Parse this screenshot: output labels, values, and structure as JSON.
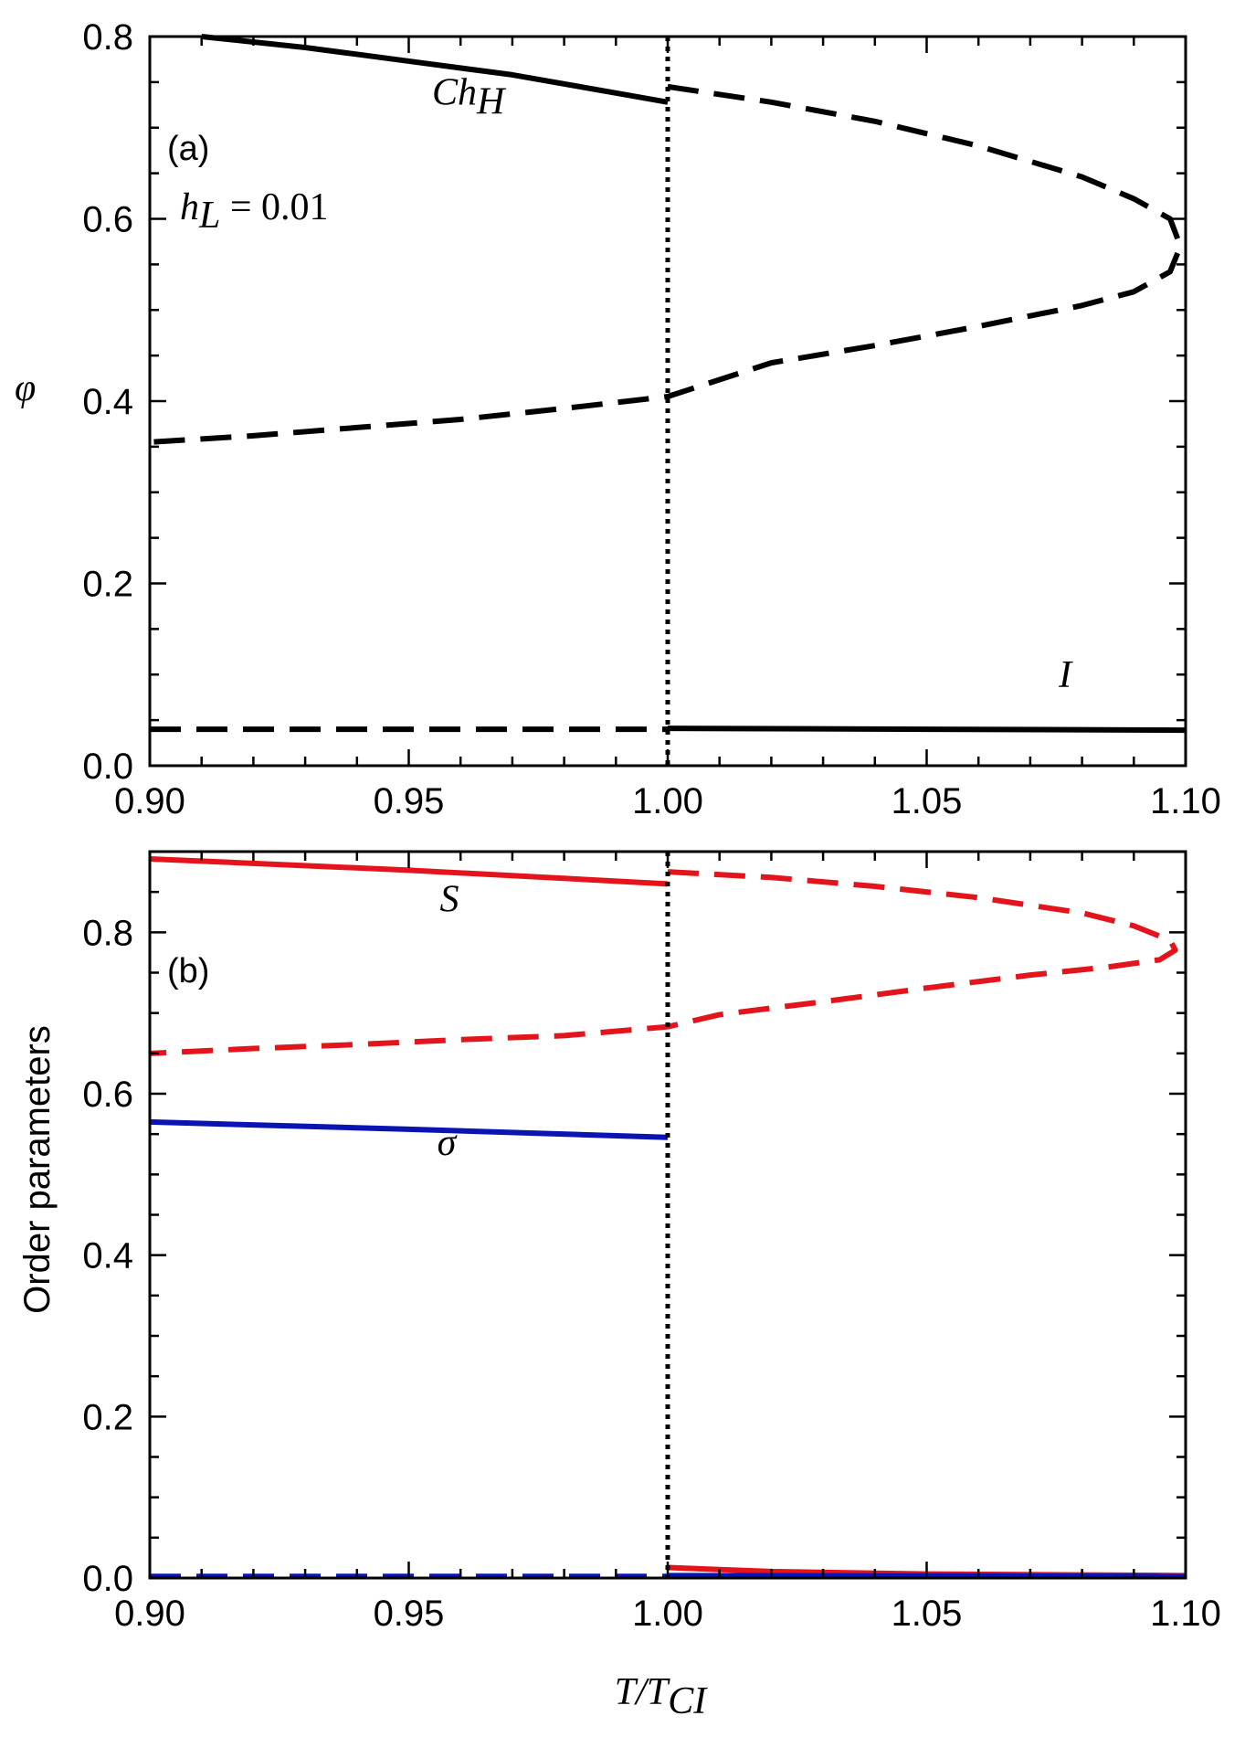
{
  "colors": {
    "black": "#000000",
    "red": "#e4141c",
    "blue": "#0a14b4"
  },
  "chart_data": [
    {
      "type": "line",
      "panel_label": "(a)",
      "parameter_label": "h_L = 0.01",
      "xlabel": "",
      "ylabel": "φ",
      "xlim": [
        0.9,
        1.1
      ],
      "ylim": [
        0.0,
        0.8
      ],
      "xticks": [
        0.9,
        0.95,
        1.0,
        1.05,
        1.1
      ],
      "xtick_labels": [
        "0.90",
        "0.95",
        "1.00",
        "1.05",
        "1.10"
      ],
      "yticks": [
        0.0,
        0.2,
        0.4,
        0.6,
        0.8
      ],
      "ytick_labels": [
        "0.0",
        "0.2",
        "0.4",
        "0.6",
        "0.8"
      ],
      "grid": false,
      "annotations": [
        {
          "text": "Ch",
          "subscript": "H",
          "x": 0.9545,
          "y": 0.7255
        },
        {
          "text": "I",
          "subscript": "",
          "x": 1.0755,
          "y": 0.086
        }
      ],
      "vline": {
        "x": 1.0,
        "style": "dotted",
        "color": "black"
      },
      "series": [
        {
          "style": "solid",
          "color": "black",
          "points": [
            [
              0.91,
              0.8
            ],
            [
              0.93,
              0.788
            ],
            [
              0.95,
              0.773
            ],
            [
              0.97,
              0.758
            ],
            [
              0.99,
              0.738
            ],
            [
              1.0,
              0.728
            ]
          ]
        },
        {
          "style": "dashed",
          "color": "black",
          "points": [
            [
              1.0,
              0.745
            ],
            [
              1.02,
              0.728
            ],
            [
              1.04,
              0.707
            ],
            [
              1.06,
              0.68
            ],
            [
              1.08,
              0.646
            ],
            [
              1.09,
              0.622
            ],
            [
              1.097,
              0.6
            ],
            [
              1.099,
              0.57
            ],
            [
              1.097,
              0.542
            ],
            [
              1.09,
              0.52
            ],
            [
              1.08,
              0.505
            ],
            [
              1.06,
              0.482
            ],
            [
              1.04,
              0.461
            ],
            [
              1.02,
              0.442
            ],
            [
              1.0,
              0.405
            ],
            [
              0.98,
              0.392
            ],
            [
              0.96,
              0.38
            ],
            [
              0.94,
              0.371
            ],
            [
              0.92,
              0.362
            ],
            [
              0.9,
              0.355
            ]
          ]
        },
        {
          "style": "dashed",
          "color": "black",
          "points": [
            [
              0.9,
              0.04
            ],
            [
              1.0,
              0.04
            ]
          ]
        },
        {
          "style": "solid",
          "color": "black",
          "points": [
            [
              1.0,
              0.041
            ],
            [
              1.1,
              0.039
            ]
          ]
        }
      ]
    },
    {
      "type": "line",
      "panel_label": "(b)",
      "xlabel": "T/T_CI",
      "ylabel": "Order parameters",
      "xlim": [
        0.9,
        1.1
      ],
      "ylim": [
        0.0,
        0.9
      ],
      "xticks": [
        0.9,
        0.95,
        1.0,
        1.05,
        1.1
      ],
      "xtick_labels": [
        "0.90",
        "0.95",
        "1.00",
        "1.05",
        "1.10"
      ],
      "yticks": [
        0.0,
        0.2,
        0.4,
        0.6,
        0.8
      ],
      "ytick_labels": [
        "0.0",
        "0.2",
        "0.4",
        "0.6",
        "0.8"
      ],
      "grid": false,
      "annotations": [
        {
          "text": "S",
          "subscript": "",
          "x": 0.956,
          "y": 0.826
        },
        {
          "text": "σ",
          "subscript": "",
          "x": 0.9555,
          "y": 0.524
        }
      ],
      "vline": {
        "x": 1.0,
        "style": "dotted",
        "color": "black"
      },
      "series": [
        {
          "style": "solid",
          "color": "red",
          "points": [
            [
              0.9,
              0.891
            ],
            [
              0.95,
              0.877
            ],
            [
              1.0,
              0.86
            ]
          ]
        },
        {
          "style": "dashed",
          "color": "red",
          "points": [
            [
              1.0,
              0.875
            ],
            [
              1.02,
              0.868
            ],
            [
              1.04,
              0.857
            ],
            [
              1.06,
              0.843
            ],
            [
              1.08,
              0.824
            ],
            [
              1.09,
              0.808
            ],
            [
              1.097,
              0.79
            ],
            [
              1.098,
              0.778
            ],
            [
              1.095,
              0.766
            ],
            [
              1.085,
              0.757
            ],
            [
              1.07,
              0.747
            ],
            [
              1.05,
              0.731
            ],
            [
              1.03,
              0.714
            ],
            [
              1.01,
              0.698
            ],
            [
              1.0,
              0.683
            ],
            [
              0.98,
              0.672
            ],
            [
              0.96,
              0.667
            ],
            [
              0.94,
              0.661
            ],
            [
              0.92,
              0.656
            ],
            [
              0.9,
              0.65
            ]
          ]
        },
        {
          "style": "solid",
          "color": "blue",
          "points": [
            [
              0.9,
              0.565
            ],
            [
              0.95,
              0.556
            ],
            [
              1.0,
              0.546
            ]
          ]
        },
        {
          "style": "dashed",
          "color": "blue",
          "points": [
            [
              0.9,
              0.002
            ],
            [
              1.0,
              0.002
            ]
          ]
        },
        {
          "style": "solid",
          "color": "red",
          "points": [
            [
              1.0,
              0.013
            ],
            [
              1.02,
              0.008
            ],
            [
              1.05,
              0.005
            ],
            [
              1.1,
              0.003
            ]
          ]
        },
        {
          "style": "solid",
          "color": "blue",
          "points": [
            [
              1.0,
              0.003
            ],
            [
              1.1,
              0.002
            ]
          ]
        }
      ]
    }
  ]
}
